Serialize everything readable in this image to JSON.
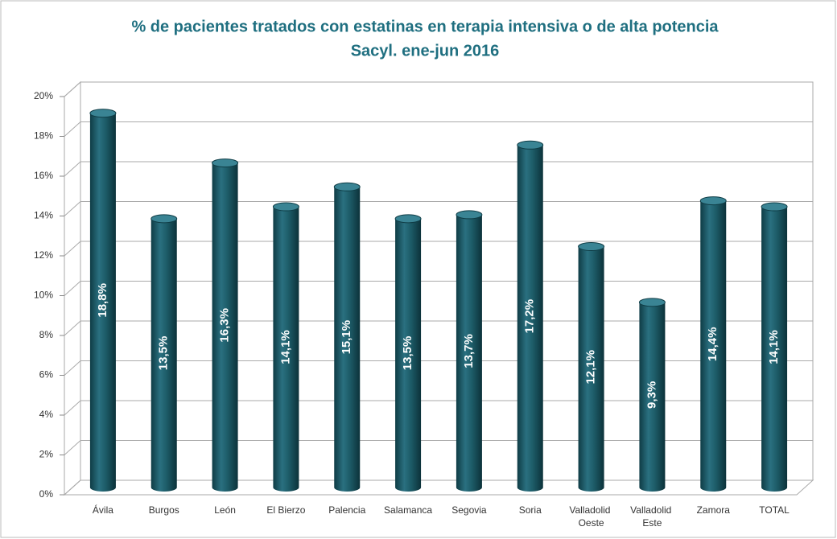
{
  "chart_data": {
    "type": "bar",
    "title": "% de pacientes tratados con estatinas en terapia intensiva o de alta potencia",
    "subtitle": "Sacyl. ene-jun 2016",
    "categories": [
      "Ávila",
      "Burgos",
      "León",
      "El Bierzo",
      "Palencia",
      "Salamanca",
      "Segovia",
      "Soria",
      "Valladolid Oeste",
      "Valladolid Este",
      "Zamora",
      "TOTAL"
    ],
    "values": [
      18.8,
      13.5,
      16.3,
      14.1,
      15.1,
      13.5,
      13.7,
      17.2,
      12.1,
      9.3,
      14.4,
      14.1
    ],
    "value_labels": [
      "18,8%",
      "13,5%",
      "16,3%",
      "14,1%",
      "15,1%",
      "13,5%",
      "13,7%",
      "17,2%",
      "12,1%",
      "9,3%",
      "14,4%",
      "14,1%"
    ],
    "color": "#1d5c68",
    "ylim": [
      0,
      20
    ],
    "yticks": [
      {
        "value": 0,
        "label": "0%"
      },
      {
        "value": 2,
        "label": "2%"
      },
      {
        "value": 4,
        "label": "4%"
      },
      {
        "value": 6,
        "label": "6%"
      },
      {
        "value": 8,
        "label": "8%"
      },
      {
        "value": 10,
        "label": "10%"
      },
      {
        "value": 12,
        "label": "12%"
      },
      {
        "value": 14,
        "label": "14%"
      },
      {
        "value": 16,
        "label": "16%"
      },
      {
        "value": 18,
        "label": "18%"
      },
      {
        "value": 20,
        "label": "20%"
      }
    ],
    "grid": true
  }
}
